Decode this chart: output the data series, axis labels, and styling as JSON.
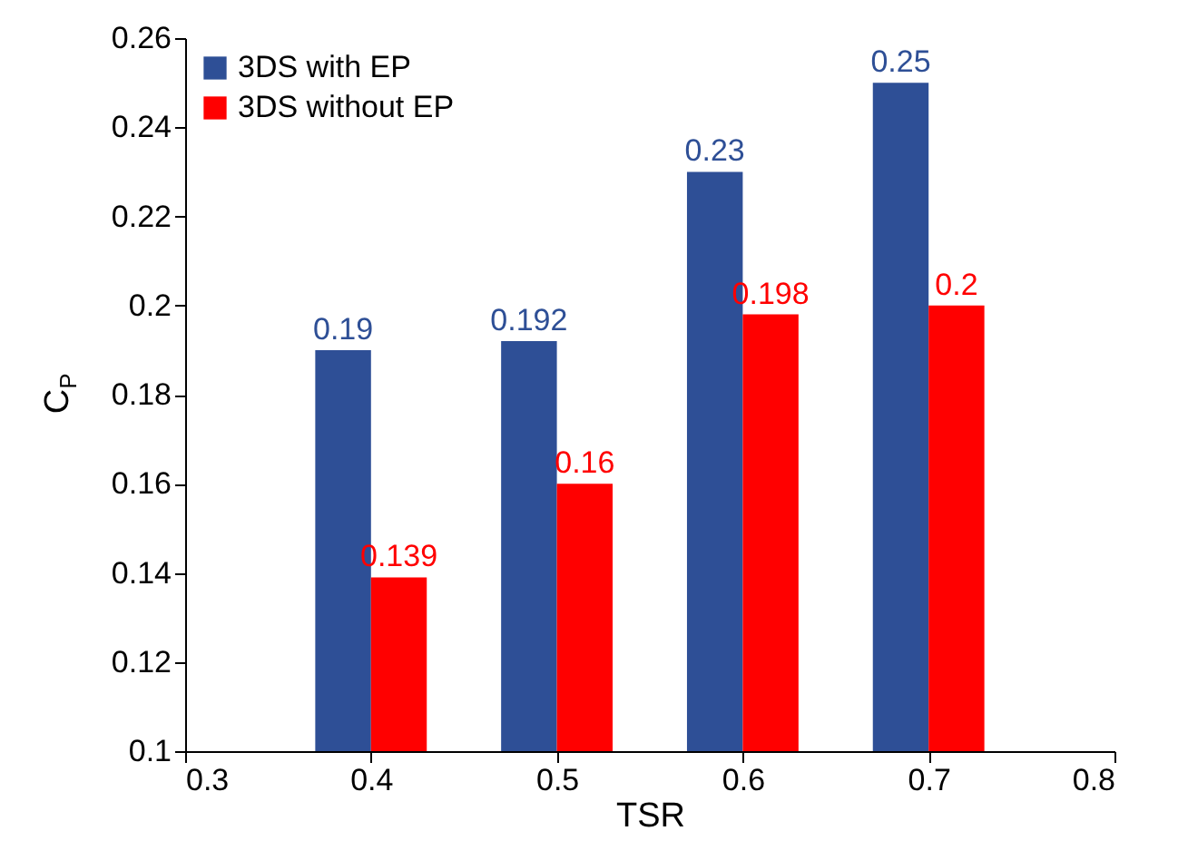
{
  "chart_data": {
    "type": "bar",
    "xlabel": "TSR",
    "ylabel": "C$_{P}$",
    "x": [
      0.4,
      0.5,
      0.6,
      0.7
    ],
    "series": [
      {
        "name": "3DS with EP",
        "color": "#2e4f96",
        "values": [
          0.19,
          0.192,
          0.23,
          0.25
        ]
      },
      {
        "name": "3DS without EP",
        "color": "#ff0000",
        "values": [
          0.139,
          0.16,
          0.198,
          0.2
        ]
      }
    ],
    "xlim": [
      0.3,
      0.8
    ],
    "xticks": [
      0.3,
      0.4,
      0.5,
      0.6,
      0.7,
      0.8
    ],
    "ylim": [
      0.1,
      0.26
    ],
    "yticks": [
      0.1,
      0.12,
      0.14,
      0.16,
      0.18,
      0.2,
      0.22,
      0.24,
      0.26
    ],
    "data_labels": true,
    "legend": "top left",
    "grid": false
  }
}
